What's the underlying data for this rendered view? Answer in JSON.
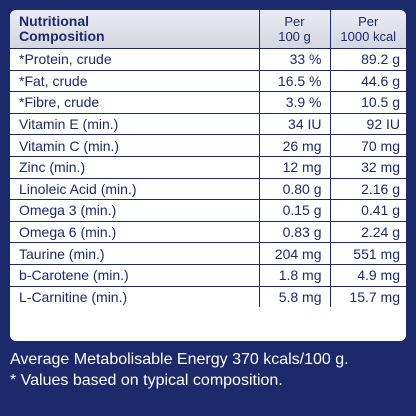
{
  "table": {
    "header": {
      "name_line1": "Nutritional",
      "name_line2": "Composition",
      "per100_line1": "Per",
      "per100_line2": "100 g",
      "perkcal_line1": "Per",
      "perkcal_line2": "1000 kcal"
    },
    "rows": [
      {
        "name": "*Protein, crude",
        "per100": "33 %",
        "perkcal": "89.2 g"
      },
      {
        "name": "*Fat, crude",
        "per100": "16.5 %",
        "perkcal": "44.6 g"
      },
      {
        "name": "*Fibre, crude",
        "per100": "3.9 %",
        "perkcal": "10.5 g"
      },
      {
        "name": "Vitamin E (min.)",
        "per100": "34 IU",
        "perkcal": "92 IU"
      },
      {
        "name": "Vitamin C (min.)",
        "per100": "26 mg",
        "perkcal": "70 mg"
      },
      {
        "name": "Zinc (min.)",
        "per100": "12 mg",
        "perkcal": "32 mg"
      },
      {
        "name": "Linoleic Acid (min.)",
        "per100": "0.80 g",
        "perkcal": "2.16 g"
      },
      {
        "name": "Omega 3 (min.)",
        "per100": "0.15 g",
        "perkcal": "0.41 g"
      },
      {
        "name": "Omega 6 (min.)",
        "per100": "0.83 g",
        "perkcal": "2.24 g"
      },
      {
        "name": "Taurine (min.)",
        "per100": "204 mg",
        "perkcal": "551 mg"
      },
      {
        "name": "b-Carotene (min.)",
        "per100": "1.8 mg",
        "perkcal": "4.9 mg"
      },
      {
        "name": "L-Carnitine (min.)",
        "per100": "5.8 mg",
        "perkcal": "15.7 mg"
      }
    ]
  },
  "footer": {
    "energy": "Average Metabolisable Energy 370 kcals/100 g.",
    "note": "* Values based on typical composition."
  },
  "colors": {
    "background": "#1c2a6b",
    "text": "#1c2a6b",
    "panel": "#ffffff",
    "header_gradient_top": "#ececf2",
    "header_gradient_bottom": "#d4d6e0"
  }
}
